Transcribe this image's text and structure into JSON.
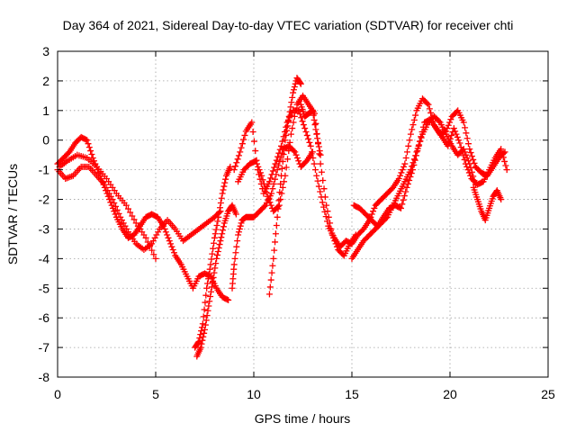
{
  "chart_data": {
    "type": "scatter",
    "title": "Day 364 of 2021, Sidereal Day-to-day VTEC variation (SDTVAR) for receiver chti",
    "xlabel": "GPS time / hours",
    "ylabel": "SDTVAR / TECUs",
    "xlim": [
      0,
      25
    ],
    "ylim": [
      -8,
      3
    ],
    "xticks": [
      "0",
      "5",
      "10",
      "15",
      "20",
      "25"
    ],
    "yticks": [
      "3",
      "2",
      "1",
      "0",
      "-1",
      "-2",
      "-3",
      "-4",
      "-5",
      "-6",
      "-7",
      "-8"
    ],
    "grid": true,
    "marker": "+",
    "series": [
      {
        "name": "SDTVAR",
        "color": "#ff0000",
        "segments": [
          {
            "x": [
              0.0,
              0.3,
              0.6,
              0.9,
              1.2,
              1.5,
              1.8,
              2.1,
              2.4,
              2.7,
              3.0,
              3.3,
              3.6,
              3.9,
              4.2,
              4.5,
              4.8,
              5.1,
              5.4,
              5.7,
              6.0,
              6.3,
              6.6,
              6.9,
              7.2,
              7.5,
              7.8,
              8.1,
              8.4,
              8.7
            ],
            "y": [
              -0.8,
              -0.6,
              -0.4,
              -0.1,
              0.1,
              0.0,
              -0.6,
              -1.1,
              -1.6,
              -2.1,
              -2.6,
              -3.0,
              -3.3,
              -3.2,
              -2.9,
              -2.6,
              -2.5,
              -2.6,
              -2.9,
              -3.4,
              -3.9,
              -4.2,
              -4.6,
              -5.0,
              -4.6,
              -4.5,
              -4.6,
              -5.0,
              -5.3,
              -5.4
            ]
          },
          {
            "x": [
              0.0,
              0.4,
              0.8,
              1.2,
              1.6,
              2.0,
              2.4,
              2.8,
              3.2,
              3.6,
              4.0,
              4.4,
              4.8,
              5.2,
              5.6,
              6.0,
              6.4,
              6.8,
              7.2,
              7.6,
              8.0,
              8.3
            ],
            "y": [
              -1.0,
              -1.3,
              -1.2,
              -0.9,
              -0.9,
              -1.2,
              -1.5,
              -2.0,
              -2.6,
              -3.1,
              -3.5,
              -3.7,
              -3.5,
              -3.0,
              -2.7,
              -3.0,
              -3.4,
              -3.2,
              -3.0,
              -2.8,
              -2.6,
              -2.4
            ]
          },
          {
            "x": [
              0.1,
              0.5,
              1.0,
              1.5,
              2.0,
              2.5,
              3.0,
              3.5,
              4.0,
              4.5,
              5.0
            ],
            "y": [
              -0.9,
              -0.7,
              -0.5,
              -0.6,
              -0.9,
              -1.3,
              -1.8,
              -2.2,
              -2.8,
              -3.3,
              -4.0
            ]
          },
          {
            "x": [
              7.0,
              7.2,
              7.4,
              7.6,
              7.8,
              8.0,
              8.2,
              8.4,
              8.6,
              8.8
            ],
            "y": [
              -7.0,
              -6.8,
              -6.2,
              -5.0,
              -4.2,
              -3.3,
              -2.6,
              -1.8,
              -1.2,
              -0.9
            ]
          },
          {
            "x": [
              7.1,
              7.3,
              7.5,
              7.7,
              7.9,
              8.1,
              8.3,
              8.5,
              8.7,
              8.9,
              9.1
            ],
            "y": [
              -7.3,
              -7.0,
              -6.4,
              -5.6,
              -4.8,
              -4.0,
              -3.4,
              -2.8,
              -2.4,
              -2.2,
              -2.5
            ]
          },
          {
            "x": [
              8.9,
              9.0,
              9.2,
              9.4,
              9.6,
              9.8,
              10.0,
              10.3,
              10.6,
              10.9,
              11.2,
              11.5,
              11.8,
              12.1,
              12.4,
              12.7,
              13.0
            ],
            "y": [
              -5.0,
              -4.2,
              -3.2,
              -2.7,
              -2.6,
              -2.6,
              -2.6,
              -2.4,
              -2.2,
              -1.8,
              -1.0,
              -0.3,
              -0.2,
              -0.4,
              -0.9,
              -0.7,
              -0.4
            ]
          },
          {
            "x": [
              9.0,
              9.3,
              9.6,
              9.9,
              10.2,
              10.5,
              10.8,
              11.1,
              11.4,
              11.7,
              12.0,
              12.3,
              12.6,
              12.9,
              13.2,
              13.5,
              13.8,
              14.1,
              14.4,
              14.7,
              15.0
            ],
            "y": [
              -1.0,
              -0.4,
              0.3,
              0.6,
              -1.0,
              -1.8,
              -1.4,
              -0.8,
              -0.2,
              0.6,
              1.0,
              1.0,
              0.4,
              -0.2,
              -1.2,
              -2.1,
              -2.9,
              -3.3,
              -3.6,
              -3.4,
              -3.5
            ]
          },
          {
            "x": [
              9.2,
              9.5,
              9.8,
              10.1,
              10.4,
              10.7,
              11.0,
              11.3,
              11.6,
              11.9,
              12.2,
              12.5,
              12.8,
              13.1,
              13.4,
              13.7,
              14.0,
              14.3,
              14.6,
              14.9,
              15.2
            ],
            "y": [
              -1.4,
              -1.0,
              -0.8,
              -0.7,
              -1.2,
              -1.9,
              -2.4,
              -2.2,
              -1.2,
              0.2,
              1.2,
              1.5,
              1.2,
              0.9,
              -0.8,
              -2.2,
              -3.2,
              -3.7,
              -3.9,
              -3.5,
              -3.2
            ]
          },
          {
            "x": [
              10.8,
              11.0,
              11.2,
              11.4,
              11.6,
              11.8,
              12.0,
              12.2,
              12.4
            ],
            "y": [
              -5.2,
              -4.0,
              -2.6,
              -1.2,
              0.0,
              0.8,
              1.6,
              2.1,
              1.9
            ]
          },
          {
            "x": [
              12.4,
              12.6,
              12.8,
              13.0,
              13.2,
              13.4
            ],
            "y": [
              1.2,
              0.8,
              0.9,
              1.0,
              0.2,
              -0.5
            ]
          },
          {
            "x": [
              15.0,
              15.3,
              15.6,
              15.9,
              16.2,
              16.5,
              16.8,
              17.1,
              17.4,
              17.7,
              18.0,
              18.3,
              18.6,
              18.9,
              19.2,
              19.5,
              19.8,
              20.1,
              20.4,
              20.7,
              21.0,
              21.3,
              21.6,
              21.9,
              22.2,
              22.5,
              22.8
            ],
            "y": [
              -3.5,
              -3.2,
              -3.0,
              -2.7,
              -2.2,
              -2.0,
              -1.8,
              -1.6,
              -1.3,
              -0.8,
              0.2,
              1.0,
              1.4,
              1.2,
              0.5,
              0.2,
              0.3,
              0.8,
              1.0,
              0.6,
              -0.3,
              -0.9,
              -1.1,
              -1.2,
              -0.9,
              -0.6,
              -0.4
            ]
          },
          {
            "x": [
              15.1,
              15.4,
              15.7,
              16.0,
              16.3,
              16.6,
              16.9,
              17.2,
              17.5,
              17.8,
              18.1,
              18.4,
              18.7,
              19.0,
              19.3,
              19.6,
              19.9,
              20.2,
              20.5,
              20.8,
              21.1,
              21.4,
              21.7,
              22.0,
              22.3,
              22.6,
              22.9
            ],
            "y": [
              -2.2,
              -2.3,
              -2.5,
              -2.7,
              -2.9,
              -2.6,
              -2.3,
              -2.2,
              -2.3,
              -1.6,
              -1.0,
              -0.2,
              0.6,
              0.7,
              0.4,
              0.1,
              -0.2,
              0.4,
              -0.1,
              -0.8,
              -1.3,
              -1.5,
              -1.4,
              -1.0,
              -0.6,
              -0.3,
              -1.0
            ]
          },
          {
            "x": [
              15.0,
              15.3,
              15.6,
              15.9,
              16.2,
              16.5,
              16.8,
              17.1,
              17.4,
              17.7,
              18.0,
              18.3,
              18.6,
              18.9,
              19.2,
              19.5,
              19.8,
              20.1,
              20.4,
              20.7,
              21.0,
              21.3
            ],
            "y": [
              -4.0,
              -3.7,
              -3.4,
              -3.2,
              -3.0,
              -2.8,
              -2.6,
              -2.2,
              -1.8,
              -1.4,
              -1.0,
              -0.4,
              0.2,
              0.6,
              0.8,
              0.6,
              0.2,
              -0.2,
              -0.5,
              -0.3,
              -0.8,
              -1.5
            ]
          },
          {
            "x": [
              21.2,
              21.4,
              21.6,
              21.8,
              22.0,
              22.2,
              22.4,
              22.6
            ],
            "y": [
              -1.6,
              -2.0,
              -2.4,
              -2.7,
              -2.3,
              -1.9,
              -1.7,
              -2.0
            ]
          }
        ]
      }
    ]
  }
}
